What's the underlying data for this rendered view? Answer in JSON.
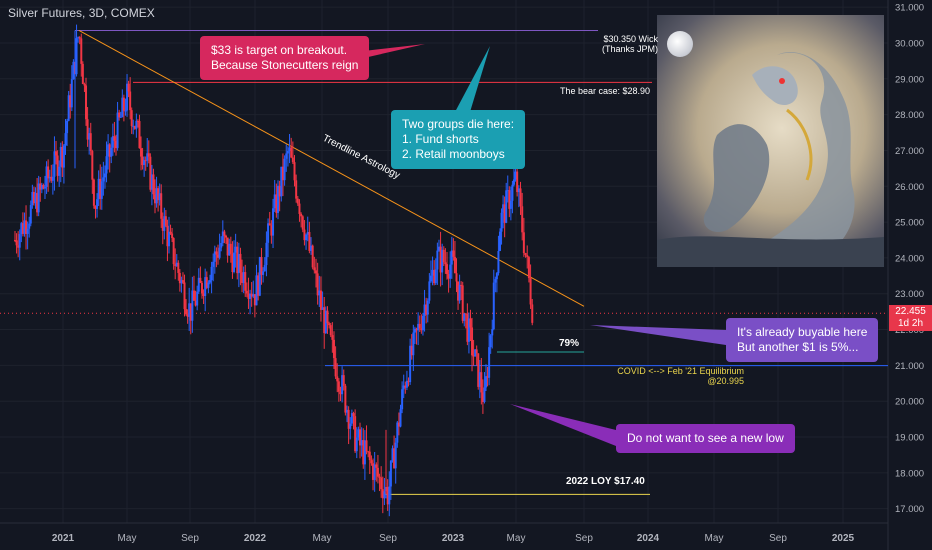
{
  "title": "Silver Futures, 3D, COMEX",
  "colors": {
    "up": "#2962ff",
    "down": "#f23645",
    "trend": "#f7931a",
    "bg": "#131722"
  },
  "annotations": {
    "target": "$33 is target on breakout.\nBecause Stonecutters reign",
    "groups": "Two groups die here:\n1. Fund shorts\n2. Retail moonboys",
    "buyable": "It's already buyable here\nBut another $1 is 5%...",
    "nolow": "Do not want to see a new low",
    "wick": "$30.350 Wick\n(Thanks JPM)",
    "bearcase": "The bear case: $28.90",
    "trendline": "Trendline Astrology",
    "covid": "COVID <--> Feb '21 Equilibrium\n@20.995",
    "pct": "79%",
    "loy": "2022 LOY $17.40"
  },
  "price_tag": {
    "value": "22.455",
    "timer": "1d 2h"
  },
  "art": {
    "name": "dragon-moon-artwork"
  },
  "chart_data": {
    "type": "line",
    "title": "Silver Futures, 3D, COMEX",
    "x_ticks": [
      "2021",
      "May",
      "Sep",
      "2022",
      "May",
      "Sep",
      "2023",
      "May",
      "Sep",
      "2024",
      "May",
      "Sep",
      "2025"
    ],
    "y_ticks": [
      "31.000",
      "30.000",
      "29.000",
      "28.000",
      "27.000",
      "26.000",
      "25.000",
      "24.000",
      "23.000",
      "22.000",
      "21.000",
      "20.000",
      "19.000",
      "18.000",
      "17.000"
    ],
    "ylim": [
      16.6,
      31.2
    ],
    "x": [
      "2020-10",
      "2021-01",
      "2021-02",
      "2021-03",
      "2021-05",
      "2021-07",
      "2021-09",
      "2021-11",
      "2022-01",
      "2022-03",
      "2022-05",
      "2022-07",
      "2022-09",
      "2022-10",
      "2022-12",
      "2023-01",
      "2023-03",
      "2023-04",
      "2023-05",
      "2023-06"
    ],
    "series": [
      {
        "values": [
          24.5,
          27.0,
          30.35,
          25.5,
          28.5,
          25.5,
          22.5,
          24.5,
          23.0,
          27.0,
          22.5,
          19.0,
          17.4,
          20.5,
          24.0,
          23.8,
          20.0,
          25.0,
          26.2,
          22.455
        ]
      }
    ],
    "levels": [
      30.35,
      28.9,
      20.995,
      17.4
    ],
    "trendline": {
      "from": {
        "x": "2021-02",
        "y": 30.35
      },
      "to": {
        "x": "2023-09",
        "y": 22.65
      }
    }
  }
}
